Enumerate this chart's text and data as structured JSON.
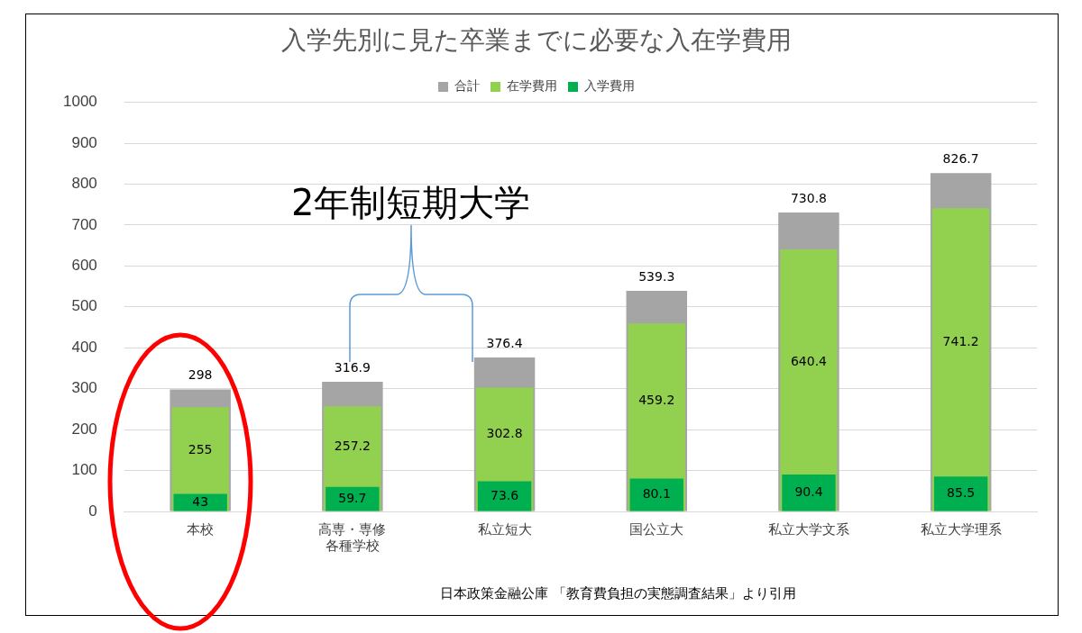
{
  "chart_data": {
    "type": "bar",
    "title": "入学先別に見た卒業までに必要な入在学費用",
    "categories": [
      "本校",
      "高専・専修各種学校",
      "私立短大",
      "国公立大",
      "私立大学文系",
      "私立大学理系"
    ],
    "series": [
      {
        "name": "合計",
        "color": "#a5a5a5",
        "values": [
          298,
          316.9,
          376.4,
          539.3,
          730.8,
          826.7
        ]
      },
      {
        "name": "在学費用",
        "color": "#92d050",
        "values": [
          255,
          257.2,
          302.8,
          459.2,
          640.4,
          741.2
        ]
      },
      {
        "name": "入学費用",
        "color": "#00b050",
        "values": [
          43,
          59.7,
          73.6,
          80.1,
          90.4,
          85.5
        ]
      }
    ],
    "ylim": [
      0,
      1000
    ],
    "yticks": [
      0,
      100,
      200,
      300,
      400,
      500,
      600,
      700,
      800,
      900,
      1000
    ],
    "grid": "y",
    "legend": "top",
    "data_labels": true,
    "annotations": [
      "2年制短期大学",
      "日本政策金融公庫 「教育費負担の実態調査結果」より引用"
    ]
  }
}
